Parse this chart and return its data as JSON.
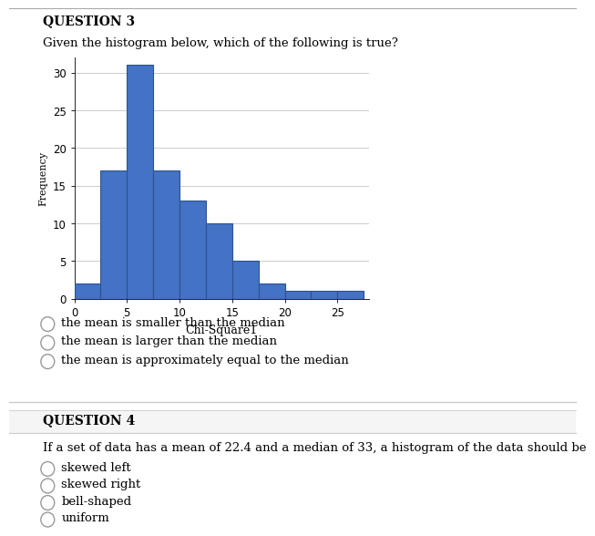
{
  "title": "QUESTION 3",
  "question3_text": "Given the histogram below, which of the following is true?",
  "ylabel": "Frequency",
  "xlabel": "Chi-Square1",
  "bar_left_edges": [
    0,
    2.5,
    5,
    7.5,
    10,
    12.5,
    15,
    17.5,
    20,
    22.5,
    25
  ],
  "bar_heights": [
    2,
    17,
    31,
    17,
    13,
    10,
    5,
    2,
    1,
    1,
    1
  ],
  "bar_width": 2.5,
  "bar_color": "#4472C4",
  "bar_edgecolor": "#2F528F",
  "ylim": [
    0,
    32
  ],
  "xlim": [
    0,
    28
  ],
  "yticks": [
    0,
    5,
    10,
    15,
    20,
    25,
    30
  ],
  "xticks": [
    0,
    5,
    10,
    15,
    20,
    25
  ],
  "grid_color": "#CCCCCC",
  "bg_color": "#FFFFFF",
  "options_q3": [
    "the mean is smaller than the median",
    "the mean is larger than the median",
    "the mean is approximately equal to the median"
  ],
  "title_q4": "QUESTION 4",
  "question4_text": "If a set of data has a mean of 22.4 and a median of 33, a histogram of the data should be",
  "options_q4": [
    "skewed left",
    "skewed right",
    "bell-shaped",
    "uniform"
  ]
}
